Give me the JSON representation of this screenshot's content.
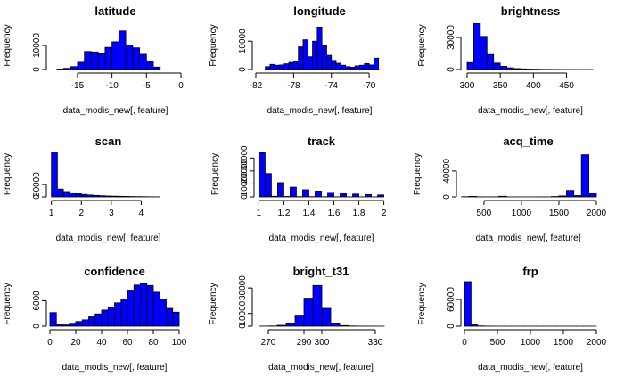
{
  "chart_data": [
    {
      "type": "histogram",
      "title": "latitude",
      "xlabel": "data_modis_new[, feature]",
      "ylabel": "Frequency",
      "xlim": [
        -19,
        0
      ],
      "ylim": [
        0,
        20000
      ],
      "xticks": [
        -15,
        -10,
        -5,
        0
      ],
      "yticks": [
        0,
        10000
      ],
      "bins": [
        -18,
        -17,
        -16,
        -15,
        -14,
        -13,
        -12,
        -11,
        -10,
        -9,
        -8,
        -7,
        -6,
        -5,
        -4,
        -3
      ],
      "values": [
        200,
        500,
        1200,
        3000,
        7500,
        7300,
        6500,
        9200,
        11500,
        16000,
        10200,
        9000,
        6300,
        3500,
        1000
      ]
    },
    {
      "type": "histogram",
      "title": "longitude",
      "xlabel": "data_modis_new[, feature]",
      "ylabel": "Frequency",
      "xlim": [
        -82,
        -68.5
      ],
      "ylim": [
        0,
        17000
      ],
      "xticks": [
        -82,
        -78,
        -74,
        -70
      ],
      "yticks": [
        0,
        10000
      ],
      "bins": [
        -81,
        -80.5,
        -80,
        -79.5,
        -79,
        -78.5,
        -78,
        -77.5,
        -77,
        -76.5,
        -76,
        -75.5,
        -75,
        -74.5,
        -74,
        -73.5,
        -73,
        -72.5,
        -72,
        -71.5,
        -71,
        -70.5,
        -70,
        -69.5,
        -69
      ],
      "values": [
        1000,
        1800,
        1500,
        1600,
        2000,
        2500,
        2800,
        8000,
        10500,
        4500,
        10000,
        15000,
        8500,
        5000,
        3200,
        2200,
        1500,
        1000,
        800,
        1300,
        1500,
        2100,
        1600,
        4000
      ]
    },
    {
      "type": "histogram",
      "title": "brightness",
      "xlabel": "data_modis_new[, feature]",
      "ylabel": "Frequency",
      "xlim": [
        296,
        495
      ],
      "ylim": [
        0,
        45000
      ],
      "xticks": [
        300,
        350,
        400,
        450
      ],
      "yticks": [
        0,
        30000
      ],
      "bins": [
        300,
        310,
        320,
        330,
        340,
        350,
        360,
        370,
        380,
        390,
        400,
        410,
        420,
        430,
        440,
        450,
        460,
        470,
        480,
        490
      ],
      "values": [
        6500,
        43000,
        31000,
        14000,
        6000,
        3000,
        1600,
        900,
        600,
        400,
        300,
        200,
        150,
        100,
        80,
        60,
        40,
        20,
        10
      ]
    },
    {
      "type": "histogram",
      "title": "scan",
      "xlabel": "data_modis_new[, feature]",
      "ylabel": "Frequency",
      "xlim": [
        0.95,
        4.85
      ],
      "ylim": [
        0,
        110000
      ],
      "xticks": [
        1,
        2,
        3,
        4
      ],
      "yticks": [
        0,
        30000
      ],
      "bins": [
        1,
        1.2,
        1.4,
        1.6,
        1.8,
        2,
        2.2,
        2.4,
        2.6,
        2.8,
        3,
        3.2,
        3.4,
        3.6,
        3.8,
        4,
        4.2,
        4.4,
        4.6
      ],
      "values": [
        108000,
        19000,
        13000,
        10000,
        8000,
        6000,
        4500,
        3600,
        2800,
        2200,
        1800,
        1500,
        1200,
        900,
        700,
        500,
        300,
        150
      ]
    },
    {
      "type": "histogram",
      "title": "track",
      "xlabel": "data_modis_new[, feature]",
      "ylabel": "Frequency",
      "xlim": [
        0.99,
        2.01
      ],
      "ylim": [
        0,
        35000
      ],
      "xticks": [
        1.0,
        1.2,
        1.4,
        1.6,
        1.8,
        2.0
      ],
      "yticks": [
        0,
        10000,
        20000,
        30000
      ],
      "bins": [
        1,
        1.05,
        1.1,
        1.15,
        1.2,
        1.25,
        1.3,
        1.35,
        1.4,
        1.45,
        1.5,
        1.55,
        1.6,
        1.65,
        1.7,
        1.75,
        1.8,
        1.85,
        1.9,
        1.95,
        2
      ],
      "values": [
        34000,
        18000,
        500,
        11000,
        300,
        7500,
        200,
        5500,
        200,
        4500,
        150,
        3500,
        100,
        2800,
        100,
        2200,
        80,
        1800,
        60,
        1500
      ]
    },
    {
      "type": "histogram",
      "title": "acq_time",
      "xlabel": "data_modis_new[, feature]",
      "ylabel": "Frequency",
      "xlim": [
        180,
        2000
      ],
      "ylim": [
        0,
        70000
      ],
      "xticks": [
        500,
        1000,
        1500,
        2000
      ],
      "yticks": [
        0,
        40000
      ],
      "bins": [
        200,
        300,
        400,
        500,
        600,
        700,
        800,
        900,
        1000,
        1100,
        1200,
        1300,
        1400,
        1500,
        1600,
        1700,
        1800,
        1900,
        2000
      ],
      "values": [
        300,
        800,
        200,
        100,
        150,
        1000,
        100,
        50,
        50,
        50,
        100,
        100,
        600,
        1500,
        10000,
        2000,
        65000,
        6000
      ]
    },
    {
      "type": "histogram",
      "title": "confidence",
      "xlabel": "data_modis_new[, feature]",
      "ylabel": "Frequency",
      "xlim": [
        0,
        100
      ],
      "ylim": [
        0,
        10500
      ],
      "xticks": [
        0,
        20,
        40,
        60,
        80,
        100
      ],
      "yticks": [
        0,
        6000
      ],
      "bins": [
        0,
        5,
        10,
        15,
        20,
        25,
        30,
        35,
        40,
        45,
        50,
        55,
        60,
        65,
        70,
        75,
        80,
        85,
        90,
        95,
        100
      ],
      "values": [
        3200,
        400,
        300,
        700,
        1100,
        1500,
        2200,
        2900,
        3800,
        4500,
        5500,
        6400,
        8500,
        9700,
        10100,
        9600,
        8000,
        6200,
        4200,
        3300
      ]
    },
    {
      "type": "histogram",
      "title": "bright_t31",
      "xlabel": "data_modis_new[, feature]",
      "ylabel": "Frequency",
      "xlim": [
        263,
        336
      ],
      "ylim": [
        0,
        35000
      ],
      "xticks": [
        270,
        290,
        300,
        330
      ],
      "yticks": [
        0,
        10000,
        30000
      ],
      "bins": [
        265,
        270,
        275,
        280,
        285,
        290,
        295,
        300,
        305,
        310,
        315,
        320,
        325,
        330,
        335
      ],
      "values": [
        50,
        150,
        700,
        2500,
        8000,
        22000,
        32000,
        14000,
        2500,
        500,
        150,
        60,
        30,
        10
      ]
    },
    {
      "type": "histogram",
      "title": "frp",
      "xlabel": "data_modis_new[, feature]",
      "ylabel": "Frequency",
      "xlim": [
        0,
        2000
      ],
      "ylim": [
        0,
        100000
      ],
      "xticks": [
        0,
        500,
        1000,
        1500,
        2000
      ],
      "yticks": [
        0,
        60000
      ],
      "bins": [
        0,
        100,
        200,
        300,
        400,
        500,
        600,
        700,
        800,
        900,
        1000,
        1100,
        1200,
        1300,
        1400,
        1500,
        1600,
        1700,
        1800,
        1900,
        2000
      ],
      "values": [
        100000,
        3000,
        600,
        200,
        100,
        60,
        40,
        30,
        20,
        15,
        10,
        8,
        6,
        5,
        4,
        3,
        2,
        2,
        1,
        1
      ]
    }
  ],
  "style": {
    "bar_fill": "#0000ff",
    "bar_stroke": "#000000",
    "axis_color": "#000000",
    "background": "#ffffff"
  }
}
